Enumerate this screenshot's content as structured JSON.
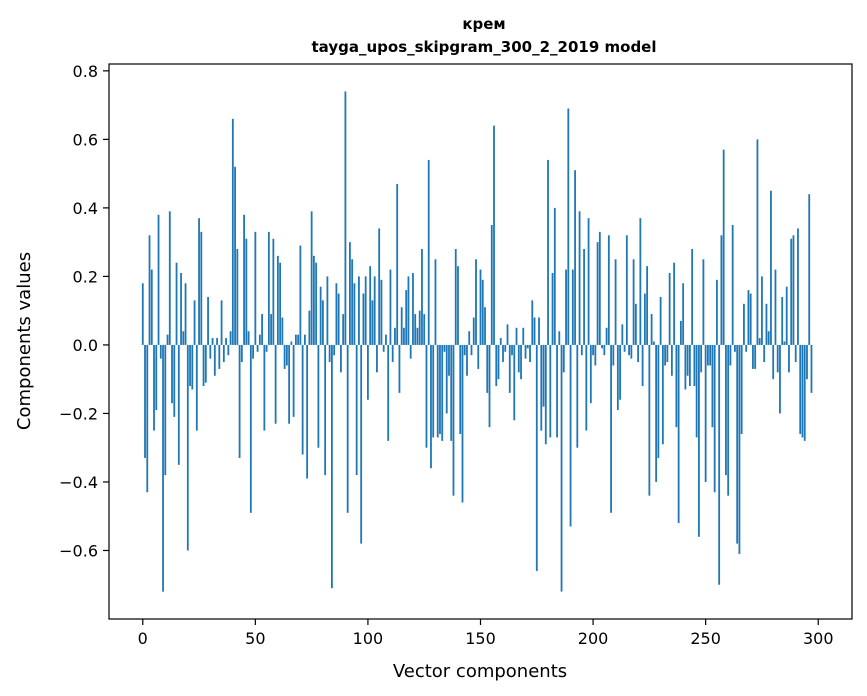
{
  "chart_data": {
    "type": "bar",
    "title": "крем",
    "subtitle": "tayga_upos_skipgram_300_2_2019 model",
    "xlabel": "Vector components",
    "ylabel": "Components values",
    "xlim": [
      -15,
      315
    ],
    "ylim": [
      -0.8,
      0.82
    ],
    "xticks": [
      0,
      50,
      100,
      150,
      200,
      250,
      300
    ],
    "yticks": [
      -0.6,
      -0.4,
      -0.2,
      0.0,
      0.2,
      0.4,
      0.6,
      0.8
    ],
    "xtick_labels": [
      "0",
      "50",
      "100",
      "150",
      "200",
      "250",
      "300"
    ],
    "ytick_labels": [
      "−0.6",
      "−0.4",
      "−0.2",
      "0.0",
      "0.2",
      "0.4",
      "0.6",
      "0.8"
    ],
    "bar_color": "#1f77b4",
    "grid": false,
    "values": [
      0.18,
      -0.33,
      -0.43,
      0.32,
      0.22,
      -0.25,
      -0.19,
      0.38,
      -0.04,
      -0.72,
      -0.38,
      0.03,
      0.39,
      -0.17,
      -0.21,
      0.24,
      -0.35,
      0.21,
      0.04,
      0.18,
      -0.6,
      -0.12,
      -0.13,
      0.13,
      -0.25,
      0.37,
      0.33,
      -0.12,
      -0.11,
      0.14,
      -0.04,
      0.02,
      -0.09,
      0.02,
      -0.07,
      0.13,
      -0.05,
      0.02,
      -0.03,
      0.04,
      0.66,
      0.52,
      0.28,
      -0.33,
      -0.05,
      0.38,
      0.31,
      0.04,
      -0.49,
      -0.04,
      0.33,
      -0.02,
      0.03,
      0.09,
      -0.25,
      -0.02,
      0.33,
      0.09,
      0.31,
      -0.23,
      0.26,
      0.24,
      0.08,
      -0.07,
      -0.06,
      -0.23,
      0.01,
      -0.21,
      0.03,
      0.03,
      0.29,
      -0.32,
      0.03,
      -0.39,
      0.1,
      0.39,
      0.26,
      0.24,
      -0.3,
      0.17,
      0.13,
      -0.38,
      0.2,
      -0.05,
      -0.71,
      -0.03,
      0.18,
      0.15,
      -0.08,
      0.09,
      0.74,
      -0.49,
      0.3,
      0.25,
      0.18,
      -0.38,
      0.2,
      -0.58,
      0.15,
      0.2,
      -0.16,
      0.23,
      0.13,
      0.2,
      -0.08,
      0.34,
      0.19,
      -0.02,
      0.03,
      -0.28,
      0.22,
      -0.05,
      0.05,
      0.47,
      -0.14,
      0.11,
      0.05,
      0.16,
      0.2,
      -0.04,
      0.21,
      0.09,
      0.05,
      0.1,
      0.28,
      0.09,
      -0.3,
      0.54,
      -0.36,
      -0.27,
      0.25,
      -0.27,
      -0.26,
      -0.28,
      -0.02,
      -0.2,
      -0.09,
      -0.28,
      -0.44,
      0.28,
      0.23,
      -0.26,
      -0.46,
      -0.03,
      -0.09,
      0.04,
      -0.03,
      0.08,
      0.25,
      -0.07,
      0.22,
      0.19,
      0.11,
      -0.14,
      -0.24,
      0.35,
      0.64,
      -0.12,
      -0.1,
      0.02,
      -0.05,
      -0.02,
      0.06,
      -0.14,
      -0.03,
      -0.22,
      0.05,
      -0.08,
      -0.1,
      0.05,
      -0.04,
      -0.01,
      -0.05,
      0.13,
      0.08,
      -0.66,
      0.08,
      -0.25,
      -0.18,
      -0.29,
      0.54,
      -0.27,
      0.21,
      0.4,
      -0.27,
      0.04,
      -0.72,
      -0.08,
      0.22,
      0.69,
      -0.53,
      0.22,
      0.51,
      -0.3,
      0.39,
      -0.03,
      0.28,
      -0.25,
      0.37,
      -0.17,
      -0.03,
      -0.06,
      0.3,
      0.33,
      -0.01,
      -0.03,
      0.05,
      0.32,
      -0.49,
      -0.06,
      0.25,
      -0.19,
      -0.16,
      0.06,
      -0.02,
      0.32,
      -0.03,
      -0.04,
      0.25,
      0.12,
      -0.05,
      0.37,
      -0.12,
      0.15,
      0.23,
      -0.44,
      0.09,
      0.01,
      -0.4,
      -0.33,
      0.14,
      -0.29,
      -0.06,
      -0.05,
      0.21,
      -0.09,
      0.24,
      -0.24,
      -0.52,
      0.07,
      0.18,
      -0.13,
      -0.09,
      -0.12,
      0.28,
      -0.12,
      -0.27,
      -0.56,
      -0.08,
      0.25,
      -0.4,
      -0.06,
      -0.06,
      -0.24,
      -0.43,
      0.19,
      -0.7,
      0.32,
      0.57,
      -0.38,
      -0.44,
      -0.06,
      0.35,
      -0.02,
      -0.58,
      -0.61,
      -0.26,
      0.12,
      -0.02,
      0.16,
      0.15,
      -0.07,
      -0.07,
      0.6,
      0.02,
      0.2,
      -0.05,
      0.12,
      0.04,
      0.45,
      -0.1,
      0.22,
      -0.08,
      -0.2,
      0.14,
      0.01,
      0.17,
      -0.08,
      0.31,
      0.32,
      -0.05,
      0.34,
      -0.26,
      -0.27,
      -0.28,
      -0.1,
      0.44,
      -0.14
    ]
  }
}
